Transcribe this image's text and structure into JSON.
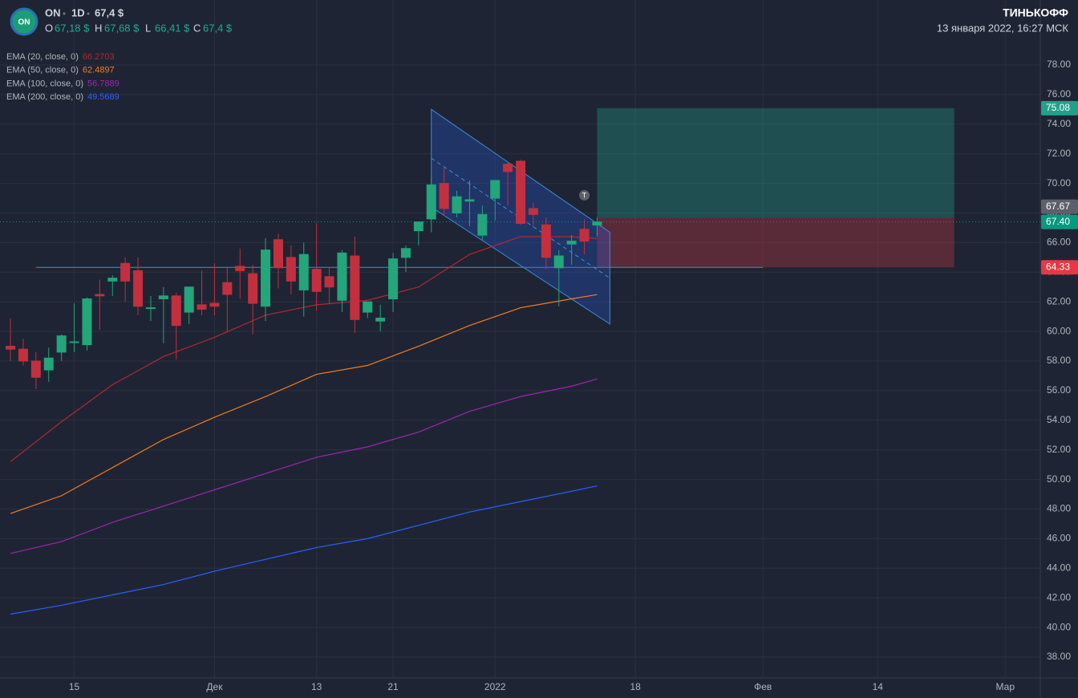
{
  "header": {
    "symbol": "ON",
    "interval": "1D",
    "price": "67,4 $",
    "ohlc": [
      {
        "key": "O",
        "value": "67,18 $"
      },
      {
        "key": "H",
        "value": "67,68 $"
      },
      {
        "key": "L",
        "value": "66,41 $"
      },
      {
        "key": "C",
        "value": "67,4 $"
      }
    ],
    "brand": "ТИНЬКОФФ",
    "datetime": "13 января 2022, 16:27 МСК"
  },
  "chart_data": {
    "type": "candlestick",
    "xlim": [
      -0.82,
      80.75
    ],
    "ylim": [
      36.59,
      82.39
    ],
    "xticks": [
      {
        "value": 5,
        "label": "15"
      },
      {
        "value": 16,
        "label": "Дек"
      },
      {
        "value": 24,
        "label": "13"
      },
      {
        "value": 30,
        "label": "21"
      },
      {
        "value": 38,
        "label": "2022"
      },
      {
        "value": 49,
        "label": "18"
      },
      {
        "value": 59,
        "label": "Фев"
      },
      {
        "value": 68,
        "label": "14"
      },
      {
        "value": 78,
        "label": "Мар"
      }
    ],
    "yticks": [
      {
        "value": 38,
        "label": "38.00"
      },
      {
        "value": 40,
        "label": "40.00"
      },
      {
        "value": 42,
        "label": "42.00"
      },
      {
        "value": 44,
        "label": "44.00"
      },
      {
        "value": 46,
        "label": "46.00"
      },
      {
        "value": 48,
        "label": "48.00"
      },
      {
        "value": 50,
        "label": "50.00"
      },
      {
        "value": 52,
        "label": "52.00"
      },
      {
        "value": 54,
        "label": "54.00"
      },
      {
        "value": 56,
        "label": "56.00"
      },
      {
        "value": 58,
        "label": "58.00"
      },
      {
        "value": 60,
        "label": "60.00"
      },
      {
        "value": 62,
        "label": "62.00"
      },
      {
        "value": 64,
        "label": "64.00"
      },
      {
        "value": 66,
        "label": "66.00"
      },
      {
        "value": 68,
        "label": "68.00"
      },
      {
        "value": 70,
        "label": "70.00"
      },
      {
        "value": 72,
        "label": "72.00"
      },
      {
        "value": 74,
        "label": "74.00"
      },
      {
        "value": 76,
        "label": "76.00"
      },
      {
        "value": 78,
        "label": "78.00"
      }
    ],
    "grid": true,
    "up_color": "#22a67a",
    "down_color": "#c2303f",
    "candles": {
      "x": [
        0,
        1,
        2,
        3,
        4,
        5,
        6,
        7,
        8,
        9,
        10,
        11,
        12,
        13,
        14,
        15,
        16,
        17,
        18,
        19,
        20,
        21,
        22,
        23,
        24,
        25,
        26,
        27,
        28,
        29,
        30,
        31,
        32,
        33,
        34,
        35,
        36,
        37,
        38,
        39,
        40,
        41,
        42,
        43,
        44,
        45,
        46
      ],
      "open": [
        59.0,
        58.8,
        58.0,
        57.4,
        58.6,
        59.3,
        59.1,
        62.5,
        63.4,
        64.6,
        64.1,
        61.6,
        62.2,
        62.4,
        61.3,
        61.8,
        61.9,
        63.3,
        64.4,
        63.9,
        61.7,
        66.2,
        65.0,
        62.8,
        64.2,
        63.7,
        62.1,
        65.1,
        61.3,
        60.7,
        62.2,
        65.0,
        66.8,
        67.6,
        70.0,
        68.0,
        68.8,
        66.5,
        69.0,
        71.3,
        71.5,
        68.3,
        67.2,
        64.3,
        65.9,
        66.9,
        67.18
      ],
      "high": [
        60.9,
        59.5,
        58.6,
        58.9,
        59.8,
        61.9,
        62.3,
        63.5,
        63.8,
        65.0,
        65.0,
        62.4,
        63.0,
        62.6,
        63.0,
        64.1,
        64.6,
        64.3,
        65.6,
        64.5,
        66.3,
        66.6,
        65.8,
        66.0,
        67.3,
        64.3,
        65.5,
        66.4,
        62.0,
        61.8,
        65.3,
        65.8,
        67.4,
        70.4,
        71.1,
        69.5,
        70.2,
        68.5,
        70.1,
        71.4,
        71.6,
        68.7,
        67.7,
        65.5,
        66.5,
        67.6,
        67.68
      ],
      "low": [
        58.0,
        57.7,
        56.1,
        56.6,
        58.0,
        58.6,
        58.7,
        60.1,
        62.4,
        62.0,
        61.1,
        60.7,
        59.2,
        58.1,
        60.5,
        61.1,
        61.1,
        60.0,
        62.2,
        59.8,
        60.7,
        62.9,
        62.5,
        61.0,
        61.4,
        61.9,
        61.3,
        59.9,
        60.9,
        60.0,
        61.3,
        64.0,
        65.8,
        66.7,
        67.8,
        67.7,
        67.1,
        66.2,
        67.5,
        68.5,
        67.2,
        67.0,
        64.2,
        61.7,
        64.5,
        65.2,
        66.41
      ],
      "close": [
        58.8,
        58.0,
        56.9,
        58.2,
        59.7,
        59.3,
        62.2,
        62.4,
        63.6,
        63.4,
        61.7,
        61.6,
        62.4,
        60.4,
        63.0,
        61.5,
        61.7,
        62.5,
        64.1,
        61.9,
        65.5,
        64.3,
        63.4,
        65.2,
        62.7,
        63.0,
        65.3,
        60.8,
        62.0,
        60.9,
        64.9,
        65.6,
        67.4,
        69.9,
        68.3,
        69.1,
        68.9,
        67.9,
        70.2,
        70.8,
        67.3,
        67.9,
        65.0,
        65.1,
        66.1,
        66.1,
        67.4
      ]
    },
    "series": [
      {
        "name": "EMA (20, close, 0)",
        "color": "#b22833",
        "x": [
          0,
          4,
          8,
          12,
          16,
          20,
          24,
          28,
          32,
          36,
          40,
          44,
          46
        ],
        "values": [
          51.2,
          53.9,
          56.4,
          58.3,
          59.6,
          61.1,
          61.8,
          62.1,
          63.0,
          65.2,
          66.4,
          66.4,
          66.2703
        ]
      },
      {
        "name": "EMA (50, close, 0)",
        "color": "#f57c20",
        "x": [
          0,
          4,
          8,
          12,
          16,
          20,
          24,
          28,
          32,
          36,
          40,
          44,
          46
        ],
        "values": [
          47.7,
          48.9,
          50.8,
          52.7,
          54.2,
          55.6,
          57.1,
          57.7,
          59.0,
          60.4,
          61.6,
          62.2,
          62.4897
        ]
      },
      {
        "name": "EMA (100, close, 0)",
        "color": "#9c27b0",
        "x": [
          0,
          4,
          8,
          12,
          16,
          20,
          24,
          28,
          32,
          36,
          40,
          44,
          46
        ],
        "values": [
          45.0,
          45.8,
          47.1,
          48.2,
          49.3,
          50.4,
          51.5,
          52.2,
          53.2,
          54.6,
          55.6,
          56.3,
          56.7889
        ]
      },
      {
        "name": "EMA (200, close, 0)",
        "color": "#2962ff",
        "x": [
          0,
          4,
          8,
          12,
          16,
          20,
          24,
          28,
          32,
          36,
          40,
          44,
          46
        ],
        "values": [
          40.9,
          41.5,
          42.2,
          42.9,
          43.8,
          44.6,
          45.4,
          46.0,
          46.9,
          47.8,
          48.5,
          49.2,
          49.5689
        ]
      }
    ],
    "channel": {
      "x": [
        33,
        47
      ],
      "upper": [
        75.0,
        66.7
      ],
      "middle": [
        71.7,
        63.6
      ],
      "lower": [
        68.4,
        60.5
      ]
    },
    "hline": {
      "x": [
        2,
        59
      ],
      "value": 64.33
    },
    "position": {
      "x": [
        46,
        74
      ],
      "entry": 67.67,
      "target": 75.08,
      "stop": 64.33
    },
    "marker": {
      "x": 45,
      "y": 69.2,
      "label": "T"
    },
    "price_labels": [
      {
        "value": 75.08,
        "label": "75.08",
        "color": "#22a08a"
      },
      {
        "value": 67.67,
        "label": "67.67",
        "color": "#5d606b"
      },
      {
        "value": 67.4,
        "label": "67.40",
        "color": "#089981"
      },
      {
        "value": 64.33,
        "label": "64.33",
        "color": "#e53945"
      }
    ]
  }
}
